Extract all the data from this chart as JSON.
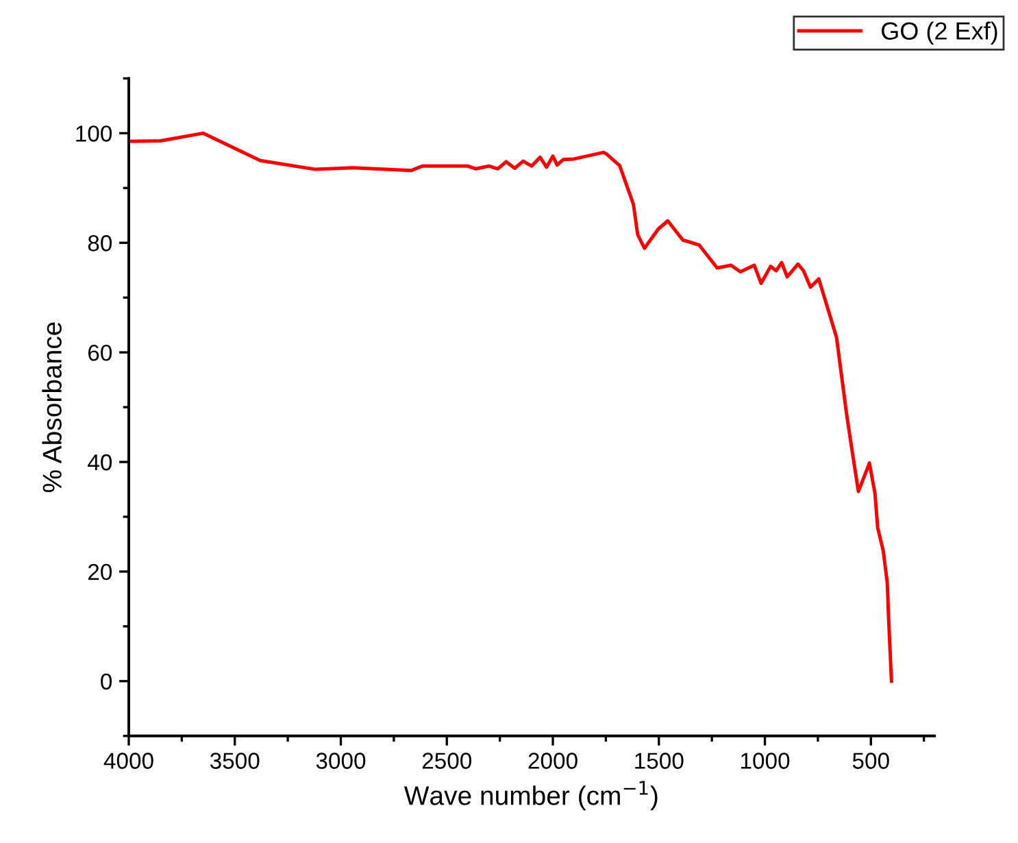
{
  "chart_data": {
    "type": "line",
    "xlabel": "Wave number (cm$^{−1}$)",
    "ylabel": "% Absorbance",
    "xlim": [
      4000,
      200
    ],
    "xticks": [
      4000,
      3500,
      3000,
      2500,
      2000,
      1500,
      1000,
      500
    ],
    "ylim": [
      -10,
      110
    ],
    "yticks": [
      0,
      20,
      40,
      60,
      80,
      100
    ],
    "legend": "top right",
    "grid": false,
    "series": [
      {
        "name": "GO (2 Exf)",
        "color": "#ff0000",
        "x": [
          4000,
          3850,
          3650,
          3380,
          3120,
          2946,
          2668,
          2616,
          2400,
          2363,
          2300,
          2260,
          2220,
          2180,
          2140,
          2100,
          2060,
          2030,
          2000,
          1980,
          1950,
          1900,
          1762,
          1750,
          1697,
          1685,
          1620,
          1600,
          1568,
          1503,
          1458,
          1387,
          1310,
          1225,
          1160,
          1115,
          1050,
          1018,
          973,
          947,
          921,
          895,
          844,
          818,
          785,
          746,
          701,
          662,
          617,
          598,
          559,
          507,
          481,
          468,
          442,
          423,
          416,
          403
        ],
        "values": [
          98.5,
          98.6,
          100,
          95,
          93.4,
          93.7,
          93.2,
          94,
          94,
          93.5,
          94,
          93.5,
          94.8,
          93.6,
          94.9,
          94,
          95.6,
          93.8,
          95.8,
          94.2,
          95.2,
          95.3,
          96.5,
          96.3,
          94.5,
          94.1,
          87,
          81.5,
          79,
          82.5,
          84,
          80.5,
          79.6,
          75.4,
          75.9,
          74.7,
          75.9,
          72.6,
          75.7,
          74.9,
          76.4,
          73.8,
          76.1,
          74.9,
          71.9,
          73.4,
          67.7,
          62.7,
          49.4,
          44.4,
          34.6,
          39.8,
          34.3,
          28,
          23.8,
          18,
          11,
          0
        ]
      }
    ]
  }
}
